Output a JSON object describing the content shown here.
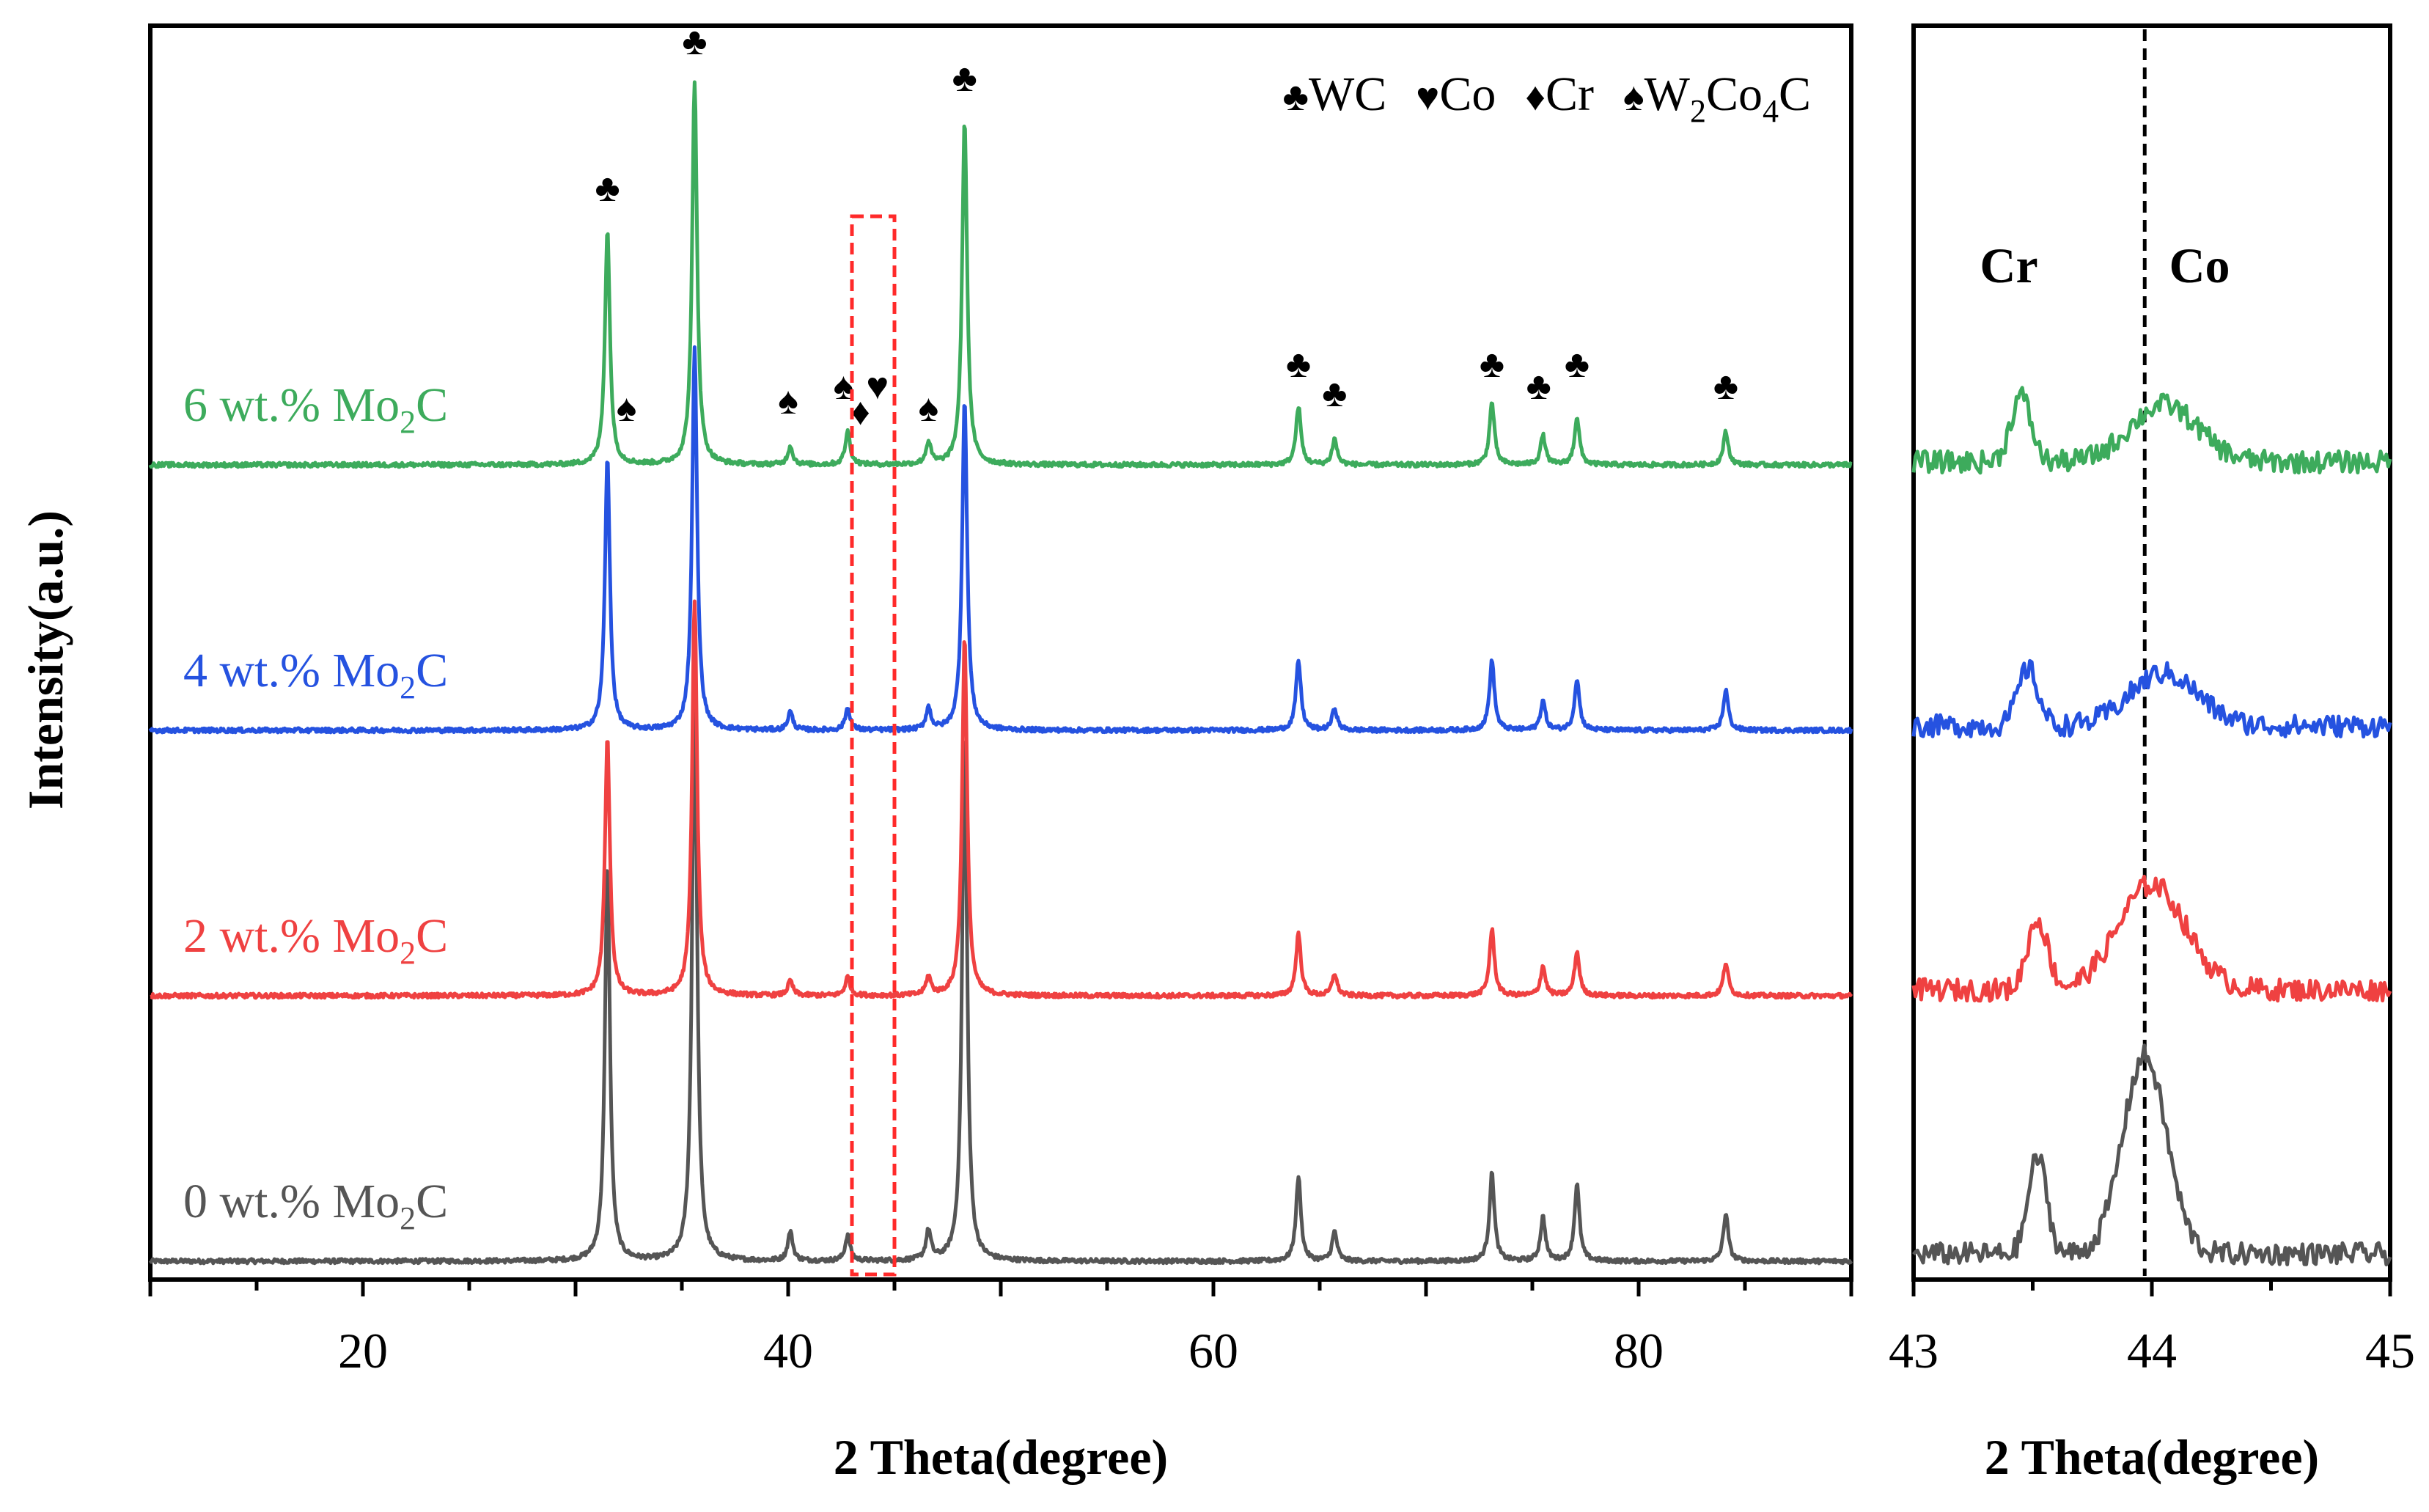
{
  "chart_data": [
    {
      "type": "line",
      "panel": "main",
      "xlabel": "2 Theta(degree)",
      "ylabel": "Intensity(a.u.)",
      "xlim": [
        10,
        90
      ],
      "xticks": [
        "20",
        "40",
        "60",
        "80"
      ],
      "legend_entries": [
        {
          "symbol": "♣",
          "label": "WC"
        },
        {
          "symbol": "♥",
          "label": "Co"
        },
        {
          "symbol": "♦",
          "label": "Cr"
        },
        {
          "symbol": "♠",
          "label": "W",
          "sub1": "2",
          "mid": "Co",
          "sub2": "4",
          "tail": "C"
        }
      ],
      "series": [
        {
          "name": "0 wt.% Mo2C",
          "pre": "0 wt.% Mo",
          "sub": "2",
          "post": "C",
          "color": "#555555",
          "offset": 0,
          "amps": [
            0.54,
            0.79,
            0.04,
            0.035,
            0.04,
            0.72,
            0.115,
            0.04,
            0.12,
            0.06,
            0.105,
            0.065
          ]
        },
        {
          "name": "2 wt.% Mo2C",
          "pre": "2 wt.% Mo",
          "sub": "2",
          "post": "C",
          "color": "#ef4141",
          "offset": 1,
          "amps": [
            0.35,
            0.54,
            0.02,
            0.025,
            0.025,
            0.49,
            0.085,
            0.03,
            0.09,
            0.04,
            0.06,
            0.045
          ]
        },
        {
          "name": "4 wt.% Mo2C",
          "pre": "4 wt.% Mo",
          "sub": "2",
          "post": "C",
          "color": "#2552e0",
          "offset": 2,
          "amps": [
            0.37,
            0.52,
            0.025,
            0.03,
            0.03,
            0.45,
            0.095,
            0.03,
            0.095,
            0.04,
            0.07,
            0.055
          ]
        },
        {
          "name": "6 wt.% Mo2C",
          "pre": "6 wt.% Mo",
          "sub": "2",
          "post": "C",
          "color": "#3dab5c",
          "offset": 3,
          "amps": [
            0.32,
            0.52,
            0.025,
            0.045,
            0.03,
            0.47,
            0.08,
            0.035,
            0.085,
            0.04,
            0.065,
            0.045
          ]
        }
      ],
      "peak_positions": [
        31.5,
        35.6,
        40.1,
        42.8,
        46.6,
        48.3,
        64.0,
        65.7,
        73.1,
        75.5,
        77.1,
        84.1
      ],
      "peak_markers": [
        {
          "x": 31.5,
          "symbol": "♣",
          "level": 0.36
        },
        {
          "x": 32.4,
          "symbol": "♠",
          "level": 0.06
        },
        {
          "x": 35.6,
          "symbol": "♣",
          "level": 0.56
        },
        {
          "x": 40.0,
          "symbol": "♠",
          "level": 0.07
        },
        {
          "x": 42.6,
          "symbol": "♠",
          "level": 0.09
        },
        {
          "x": 43.4,
          "symbol": "♦",
          "level": 0.055
        },
        {
          "x": 44.2,
          "symbol": "♥",
          "level": 0.09
        },
        {
          "x": 46.6,
          "symbol": "♠",
          "level": 0.06
        },
        {
          "x": 48.3,
          "symbol": "♣",
          "level": 0.51
        },
        {
          "x": 64.0,
          "symbol": "♣",
          "level": 0.12
        },
        {
          "x": 65.7,
          "symbol": "♣",
          "level": 0.08
        },
        {
          "x": 73.1,
          "symbol": "♣",
          "level": 0.12
        },
        {
          "x": 75.3,
          "symbol": "♣",
          "level": 0.09
        },
        {
          "x": 77.1,
          "symbol": "♣",
          "level": 0.12
        },
        {
          "x": 84.1,
          "symbol": "♣",
          "level": 0.09
        }
      ],
      "highlight_box": {
        "x_range": [
          43,
          45
        ],
        "style": "red dashed"
      }
    },
    {
      "type": "line",
      "panel": "zoom",
      "xlabel": "2 Theta(degree)",
      "xlim": [
        43,
        45
      ],
      "xticks": [
        "43",
        "44",
        "45"
      ],
      "peak_labels": [
        {
          "text": "Cr",
          "x": 43.4
        },
        {
          "text": "Co",
          "x": 44.2
        }
      ],
      "reference_line": {
        "x": 43.97,
        "style": "black dashed"
      },
      "series": [
        {
          "name": "0 wt.% Mo2C",
          "color": "#555555",
          "offset": 0,
          "cr": {
            "x": 43.52,
            "amp": 0.22,
            "w": 0.055
          },
          "co": {
            "x": 43.97,
            "amp": 0.45,
            "w": 0.13
          }
        },
        {
          "name": "2 wt.% Mo2C",
          "color": "#ef4141",
          "offset": 1,
          "cr": {
            "x": 43.52,
            "amp": 0.16,
            "w": 0.06
          },
          "co": {
            "x": 44.0,
            "amp": 0.24,
            "w": 0.2
          }
        },
        {
          "name": "4 wt.% Mo2C",
          "color": "#2552e0",
          "offset": 2,
          "cr": {
            "x": 43.48,
            "amp": 0.13,
            "w": 0.06
          },
          "co": {
            "x": 44.05,
            "amp": 0.12,
            "w": 0.2
          }
        },
        {
          "name": "6 wt.% Mo2C",
          "color": "#3dab5c",
          "offset": 3,
          "cr": {
            "x": 43.45,
            "amp": 0.15,
            "w": 0.06
          },
          "co": {
            "x": 44.05,
            "amp": 0.13,
            "w": 0.2
          }
        }
      ]
    }
  ]
}
